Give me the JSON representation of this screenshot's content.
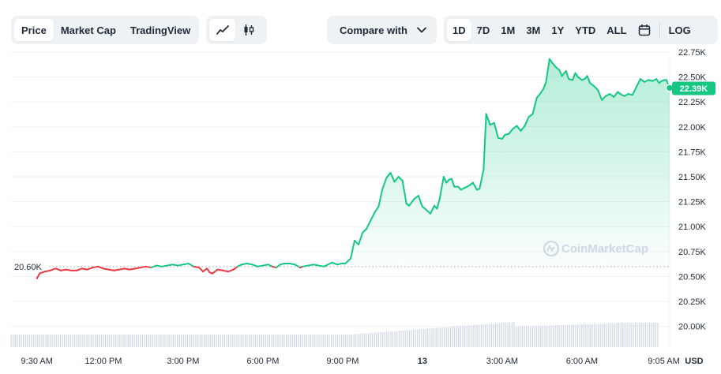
{
  "toolbar": {
    "view_tabs": [
      {
        "label": "Price",
        "active": true
      },
      {
        "label": "Market Cap",
        "active": false
      },
      {
        "label": "TradingView",
        "active": false
      }
    ],
    "chart_types": [
      {
        "icon": "line-chart-icon",
        "active": true
      },
      {
        "icon": "candlestick-icon",
        "active": false
      }
    ],
    "compare": {
      "label": "Compare with",
      "icon": "chevron-down-icon"
    },
    "ranges": [
      {
        "label": "1D",
        "active": true
      },
      {
        "label": "7D",
        "active": false
      },
      {
        "label": "1M",
        "active": false
      },
      {
        "label": "3M",
        "active": false
      },
      {
        "label": "1Y",
        "active": false
      },
      {
        "label": "YTD",
        "active": false
      },
      {
        "label": "ALL",
        "active": false
      }
    ],
    "calendar_icon": "calendar-icon",
    "log_label": "LOG"
  },
  "watermark": {
    "text": "CoinMarketCap",
    "icon": "coinmarketcap-logo-icon"
  },
  "colors": {
    "up": "#16c784",
    "down": "#ea3943",
    "grid": "#eff2f5",
    "axis_text": "#58667e",
    "volume": "#cfd6e4"
  },
  "chart_data": {
    "type": "line",
    "y_ticks": [
      "22.75K",
      "22.50K",
      "22.25K",
      "22.00K",
      "21.75K",
      "21.50K",
      "21.25K",
      "21.00K",
      "20.75K",
      "20.50K",
      "20.25K",
      "20.00K"
    ],
    "y_tick_values": [
      22750,
      22500,
      22250,
      22000,
      21750,
      21500,
      21250,
      21000,
      20750,
      20500,
      20250,
      20000
    ],
    "y_range": [
      19950,
      22900
    ],
    "x_ticks": [
      "9:30 AM",
      "12:00 PM",
      "3:00 PM",
      "6:00 PM",
      "9:00 PM",
      "13",
      "3:00 AM",
      "6:00 AM",
      "9:05 AM"
    ],
    "x_tick_values": [
      9.5,
      12,
      15,
      18,
      21,
      24,
      27,
      30,
      33.08
    ],
    "x_range": [
      8.35,
      33.3
    ],
    "currency": "USD",
    "reference": {
      "value": 20600,
      "label": "20.60K"
    },
    "last": {
      "value": 22390,
      "label": "22.39K"
    },
    "grid": true,
    "series": [
      {
        "values": [
          [
            9.5,
            20480
          ],
          [
            9.6,
            20530
          ],
          [
            9.8,
            20550
          ],
          [
            10.0,
            20560
          ],
          [
            10.2,
            20580
          ],
          [
            10.4,
            20560
          ],
          [
            10.6,
            20570
          ],
          [
            10.8,
            20560
          ],
          [
            11.0,
            20560
          ],
          [
            11.2,
            20580
          ],
          [
            11.4,
            20570
          ],
          [
            11.6,
            20590
          ],
          [
            11.8,
            20600
          ],
          [
            12.0,
            20580
          ],
          [
            12.2,
            20570
          ],
          [
            12.4,
            20560
          ],
          [
            12.6,
            20570
          ],
          [
            12.8,
            20580
          ],
          [
            13.0,
            20570
          ],
          [
            13.2,
            20580
          ],
          [
            13.4,
            20590
          ],
          [
            13.6,
            20600
          ],
          [
            13.8,
            20590
          ],
          [
            14.0,
            20610
          ],
          [
            14.2,
            20600
          ],
          [
            14.4,
            20610
          ],
          [
            14.6,
            20620
          ],
          [
            14.8,
            20610
          ],
          [
            15.0,
            20620
          ],
          [
            15.2,
            20630
          ],
          [
            15.4,
            20600
          ],
          [
            15.6,
            20590
          ],
          [
            15.75,
            20550
          ],
          [
            15.9,
            20580
          ],
          [
            16.0,
            20540
          ],
          [
            16.1,
            20530
          ],
          [
            16.3,
            20570
          ],
          [
            16.5,
            20560
          ],
          [
            16.7,
            20550
          ],
          [
            16.9,
            20570
          ],
          [
            17.05,
            20600
          ],
          [
            17.2,
            20620
          ],
          [
            17.4,
            20630
          ],
          [
            17.6,
            20620
          ],
          [
            17.8,
            20600
          ],
          [
            18.0,
            20610
          ],
          [
            18.2,
            20620
          ],
          [
            18.35,
            20600
          ],
          [
            18.5,
            20590
          ],
          [
            18.65,
            20620
          ],
          [
            18.8,
            20630
          ],
          [
            19.0,
            20630
          ],
          [
            19.2,
            20620
          ],
          [
            19.4,
            20590
          ],
          [
            19.5,
            20600
          ],
          [
            19.7,
            20610
          ],
          [
            19.9,
            20620
          ],
          [
            20.1,
            20610
          ],
          [
            20.3,
            20600
          ],
          [
            20.45,
            20620
          ],
          [
            20.6,
            20640
          ],
          [
            20.8,
            20620
          ],
          [
            20.95,
            20630
          ],
          [
            21.1,
            20630
          ],
          [
            21.3,
            20680
          ],
          [
            21.45,
            20860
          ],
          [
            21.6,
            20820
          ],
          [
            21.75,
            20940
          ],
          [
            21.9,
            20980
          ],
          [
            22.05,
            21060
          ],
          [
            22.2,
            21140
          ],
          [
            22.35,
            21200
          ],
          [
            22.5,
            21380
          ],
          [
            22.65,
            21490
          ],
          [
            22.8,
            21540
          ],
          [
            22.95,
            21450
          ],
          [
            23.1,
            21500
          ],
          [
            23.25,
            21460
          ],
          [
            23.4,
            21230
          ],
          [
            23.5,
            21210
          ],
          [
            23.7,
            21280
          ],
          [
            23.85,
            21310
          ],
          [
            24.0,
            21200
          ],
          [
            24.1,
            21180
          ],
          [
            24.3,
            21130
          ],
          [
            24.45,
            21210
          ],
          [
            24.55,
            21180
          ],
          [
            24.65,
            21280
          ],
          [
            24.8,
            21500
          ],
          [
            24.9,
            21440
          ],
          [
            25.0,
            21470
          ],
          [
            25.1,
            21480
          ],
          [
            25.2,
            21400
          ],
          [
            25.35,
            21400
          ],
          [
            25.45,
            21370
          ],
          [
            25.6,
            21390
          ],
          [
            25.75,
            21410
          ],
          [
            25.9,
            21440
          ],
          [
            26.05,
            21370
          ],
          [
            26.15,
            21380
          ],
          [
            26.3,
            21570
          ],
          [
            26.4,
            22130
          ],
          [
            26.55,
            22020
          ],
          [
            26.7,
            22040
          ],
          [
            26.85,
            21890
          ],
          [
            27.0,
            21880
          ],
          [
            27.1,
            21920
          ],
          [
            27.25,
            21930
          ],
          [
            27.4,
            21980
          ],
          [
            27.55,
            22010
          ],
          [
            27.7,
            21960
          ],
          [
            27.85,
            22010
          ],
          [
            28.0,
            22100
          ],
          [
            28.15,
            22130
          ],
          [
            28.3,
            22290
          ],
          [
            28.45,
            22340
          ],
          [
            28.55,
            22380
          ],
          [
            28.65,
            22450
          ],
          [
            28.78,
            22680
          ],
          [
            28.92,
            22630
          ],
          [
            29.05,
            22590
          ],
          [
            29.15,
            22570
          ],
          [
            29.25,
            22510
          ],
          [
            29.4,
            22560
          ],
          [
            29.5,
            22480
          ],
          [
            29.65,
            22470
          ],
          [
            29.75,
            22540
          ],
          [
            29.85,
            22500
          ],
          [
            30.0,
            22470
          ],
          [
            30.1,
            22480
          ],
          [
            30.2,
            22510
          ],
          [
            30.3,
            22440
          ],
          [
            30.45,
            22410
          ],
          [
            30.6,
            22370
          ],
          [
            30.75,
            22270
          ],
          [
            30.9,
            22310
          ],
          [
            31.05,
            22330
          ],
          [
            31.2,
            22300
          ],
          [
            31.35,
            22350
          ],
          [
            31.5,
            22320
          ],
          [
            31.6,
            22310
          ],
          [
            31.75,
            22330
          ],
          [
            31.9,
            22320
          ],
          [
            32.05,
            22400
          ],
          [
            32.2,
            22480
          ],
          [
            32.35,
            22450
          ],
          [
            32.5,
            22470
          ],
          [
            32.65,
            22460
          ],
          [
            32.8,
            22480
          ],
          [
            32.9,
            22440
          ],
          [
            33.0,
            22460
          ],
          [
            33.1,
            22470
          ],
          [
            33.18,
            22470
          ],
          [
            33.25,
            22420
          ],
          [
            33.3,
            22390
          ]
        ]
      }
    ]
  }
}
